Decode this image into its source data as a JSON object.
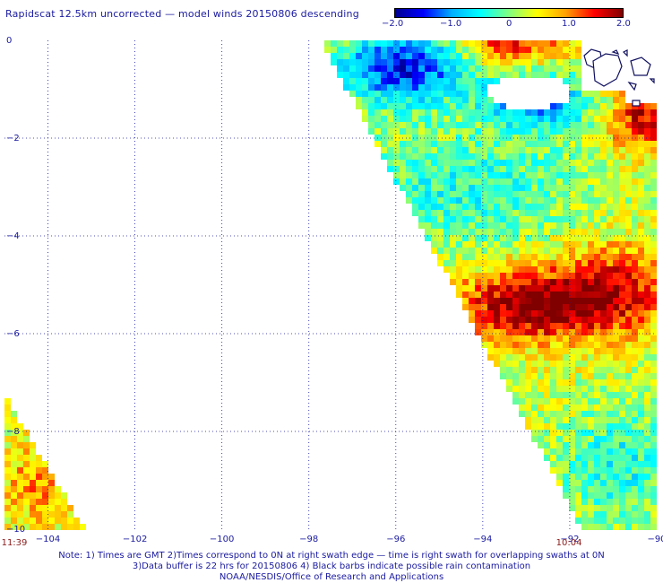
{
  "title": "Rapidscat 12.5km uncorrected — model winds 20150806 descending",
  "colorbar": {
    "labels": [
      "−2.0",
      "−1.0",
      "0",
      "1.0",
      "2.0"
    ],
    "values": [
      -2.0,
      -1.0,
      0,
      1.0,
      2.0
    ],
    "min": -2.0,
    "max": 2.0,
    "colors": [
      "#000090",
      "#0000ff",
      "#00b0ff",
      "#00ffff",
      "#80ff80",
      "#ffff00",
      "#ffa000",
      "#ff0000",
      "#800000"
    ]
  },
  "map": {
    "lat_ticks": [
      "0",
      "−2",
      "−4",
      "−6",
      "−8",
      "−10"
    ],
    "lon_ticks": [
      "−104",
      "−102",
      "−100",
      "−98",
      "−96",
      "−94",
      "−92",
      "−90"
    ],
    "lat_range": [
      -10,
      0
    ],
    "lon_range": [
      -105,
      -90
    ],
    "grid": true,
    "time_labels": [
      {
        "text": "11:39",
        "lon": -105.0
      },
      {
        "text": "10:04",
        "lon": -92.1
      }
    ],
    "land": "Galapagos Islands (top right, near 0, −91)"
  },
  "notes": [
    "Note: 1) Times are GMT 2)Times correspond to 0N at right swath edge — time is right swath for overlapping swaths at 0N",
    "3)Data buffer is 22 hrs for 20150806 4) Black barbs indicate possible rain contamination",
    "NOAA/NESDIS/Office of Research and Applications"
  ]
}
